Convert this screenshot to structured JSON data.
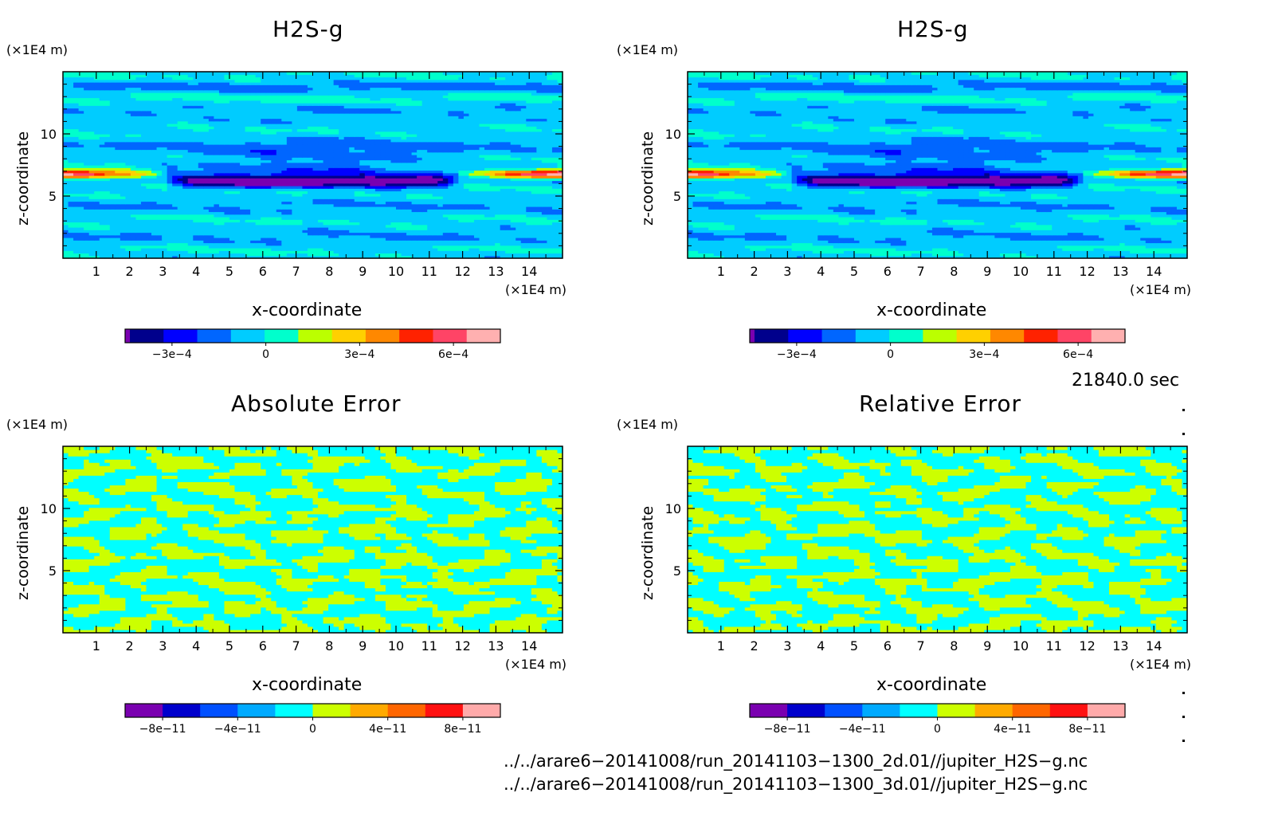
{
  "colors": {
    "field": [
      "#7a00b0",
      "#00008c",
      "#0000ff",
      "#0066ff",
      "#00ccff",
      "#00ffcc",
      "#bbff00",
      "#ffd000",
      "#ff8800",
      "#ff2200",
      "#ff4466",
      "#ffb0b0"
    ],
    "error": [
      "#7a00b0",
      "#0000cc",
      "#0050ff",
      "#00aaff",
      "#00ffff",
      "#ccff00",
      "#ffaa00",
      "#ff6600",
      "#ff1111",
      "#ffaaaa"
    ],
    "axis": "#000000"
  },
  "chart_data": [
    {
      "type": "heatmap",
      "title": "H2S-g",
      "xlabel": "x-coordinate",
      "ylabel": "z-coordinate",
      "x_unit": "(×1E4 m)",
      "y_unit": "(×1E4 m)",
      "xlim": [
        0,
        15
      ],
      "ylim": [
        0,
        15
      ],
      "x_ticks": [
        "1",
        "2",
        "3",
        "4",
        "5",
        "6",
        "7",
        "8",
        "9",
        "10",
        "11",
        "12",
        "13",
        "14"
      ],
      "y_ticks": [
        "5",
        "10"
      ],
      "colorbar_ticks": [
        {
          "label": "−3e−4",
          "value": -0.0003
        },
        {
          "label": "0",
          "value": 0
        },
        {
          "label": "3e−4",
          "value": 0.0003
        },
        {
          "label": "6e−4",
          "value": 0.0006
        }
      ],
      "colorbar_range": [
        -0.00045,
        0.00075
      ],
      "features": [
        {
          "kind": "min-band",
          "z": 6.2,
          "x_range": [
            3.5,
            11.5
          ],
          "value": -0.0004
        },
        {
          "kind": "max-lobe",
          "z": 6.8,
          "x_range": [
            0,
            3
          ],
          "value": 0.0007
        },
        {
          "kind": "max-lobe",
          "z": 6.8,
          "x_range": [
            12,
            15
          ],
          "value": 0.0007
        }
      ]
    },
    {
      "type": "heatmap",
      "title": "H2S-g",
      "xlabel": "x-coordinate",
      "ylabel": "z-coordinate",
      "x_unit": "(×1E4 m)",
      "y_unit": "(×1E4 m)",
      "xlim": [
        0,
        15
      ],
      "ylim": [
        0,
        15
      ],
      "x_ticks": [
        "1",
        "2",
        "3",
        "4",
        "5",
        "6",
        "7",
        "8",
        "9",
        "10",
        "11",
        "12",
        "13",
        "14"
      ],
      "y_ticks": [
        "5",
        "10"
      ],
      "colorbar_ticks": [
        {
          "label": "−3e−4",
          "value": -0.0003
        },
        {
          "label": "0",
          "value": 0
        },
        {
          "label": "3e−4",
          "value": 0.0003
        },
        {
          "label": "6e−4",
          "value": 0.0006
        }
      ],
      "colorbar_range": [
        -0.00045,
        0.00075
      ],
      "features": [
        {
          "kind": "min-band",
          "z": 6.2,
          "x_range": [
            3.5,
            11.5
          ],
          "value": -0.0004
        },
        {
          "kind": "max-lobe",
          "z": 6.8,
          "x_range": [
            0,
            3
          ],
          "value": 0.0007
        },
        {
          "kind": "max-lobe",
          "z": 6.8,
          "x_range": [
            12,
            15
          ],
          "value": 0.0007
        }
      ]
    },
    {
      "type": "heatmap",
      "title": "Absolute Error",
      "xlabel": "x-coordinate",
      "ylabel": "z-coordinate",
      "x_unit": "(×1E4 m)",
      "y_unit": "(×1E4 m)",
      "xlim": [
        0,
        15
      ],
      "ylim": [
        0,
        15
      ],
      "x_ticks": [
        "1",
        "2",
        "3",
        "4",
        "5",
        "6",
        "7",
        "8",
        "9",
        "10",
        "11",
        "12",
        "13",
        "14"
      ],
      "y_ticks": [
        "5",
        "10"
      ],
      "colorbar_ticks": [
        {
          "label": "−8e−11",
          "value": -8e-11
        },
        {
          "label": "−4e−11",
          "value": -4e-11
        },
        {
          "label": "0",
          "value": 0
        },
        {
          "label": "4e−11",
          "value": 4e-11
        },
        {
          "label": "8e−11",
          "value": 8e-11
        }
      ],
      "colorbar_range": [
        -1e-10,
        1e-10
      ],
      "features": [
        {
          "kind": "noise",
          "values": [
            -1e-11,
            1e-11
          ]
        }
      ]
    },
    {
      "type": "heatmap",
      "title": "Relative Error",
      "xlabel": "x-coordinate",
      "ylabel": "z-coordinate",
      "x_unit": "(×1E4 m)",
      "y_unit": "(×1E4 m)",
      "xlim": [
        0,
        15
      ],
      "ylim": [
        0,
        15
      ],
      "x_ticks": [
        "1",
        "2",
        "3",
        "4",
        "5",
        "6",
        "7",
        "8",
        "9",
        "10",
        "11",
        "12",
        "13",
        "14"
      ],
      "y_ticks": [
        "5",
        "10"
      ],
      "colorbar_ticks": [
        {
          "label": "−8e−11",
          "value": -8e-11
        },
        {
          "label": "−4e−11",
          "value": -4e-11
        },
        {
          "label": "0",
          "value": 0
        },
        {
          "label": "4e−11",
          "value": 4e-11
        },
        {
          "label": "8e−11",
          "value": 8e-11
        }
      ],
      "colorbar_range": [
        -1e-10,
        1e-10
      ],
      "features": [
        {
          "kind": "noise",
          "values": [
            -1e-11,
            1e-11
          ]
        }
      ]
    }
  ],
  "time_label": "21840.0 sec",
  "source_files": [
    "../../arare6−20141008/run_20141103−1300_2d.01//jupiter_H2S−g.nc",
    "../../arare6−20141008/run_20141103−1300_3d.01//jupiter_H2S−g.nc"
  ]
}
